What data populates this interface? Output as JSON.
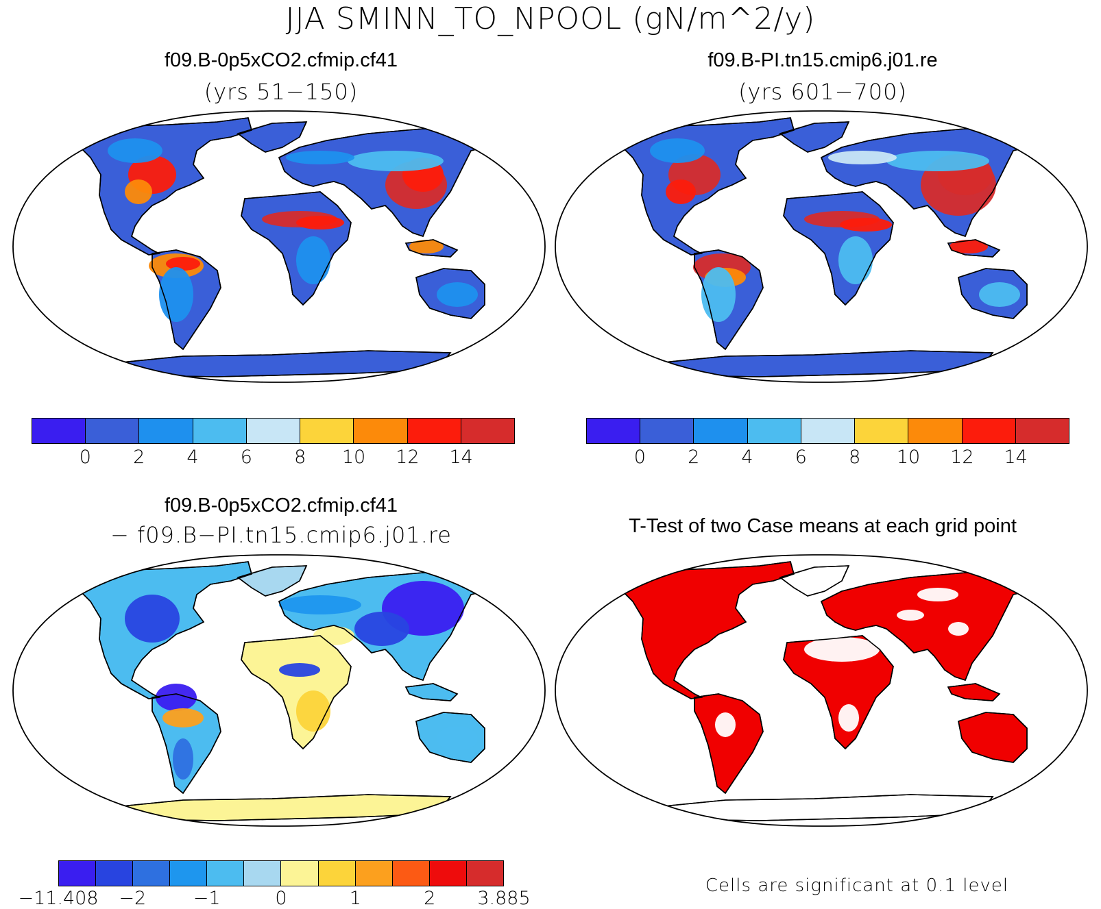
{
  "title": "JJA SMINN_TO_NPOOL (gN/m^2/y)",
  "panels": [
    {
      "title": "f09.B-0p5xCO2.cfmip.cf41",
      "subtitle": "(yrs 51−150)"
    },
    {
      "title": "f09.B-PI.tn15.cmip6.j01.re",
      "subtitle": "(yrs 601−700)"
    },
    {
      "title": "f09.B-0p5xCO2.cfmip.cf41",
      "subtitle": "− f09.B−PI.tn15.cmip6.j01.re"
    },
    {
      "title": "T-Test of two Case means at each grid point",
      "subtitle": ""
    }
  ],
  "colorbar_abs": {
    "colors": [
      "#3a1ef0",
      "#3a5fd8",
      "#1e90ee",
      "#4cbcf0",
      "#c8e6f6",
      "#fcd43a",
      "#fc8a0a",
      "#fc1c0c",
      "#d62c2c"
    ],
    "ticks": [
      "0",
      "2",
      "4",
      "6",
      "8",
      "10",
      "12",
      "14"
    ]
  },
  "colorbar_diff": {
    "colors": [
      "#3a1ef0",
      "#2844e0",
      "#2e70e0",
      "#1e96ee",
      "#4cbcf0",
      "#a8d8f0",
      "#fcf496",
      "#fcd43a",
      "#fca01e",
      "#fc5a14",
      "#ee0c0c",
      "#d62c2c"
    ],
    "ticks": [
      "−11.408",
      "−2",
      "−1",
      "0",
      "1",
      "2",
      "3.885"
    ]
  },
  "significance_note": "Cells are significant at 0.1 level"
}
